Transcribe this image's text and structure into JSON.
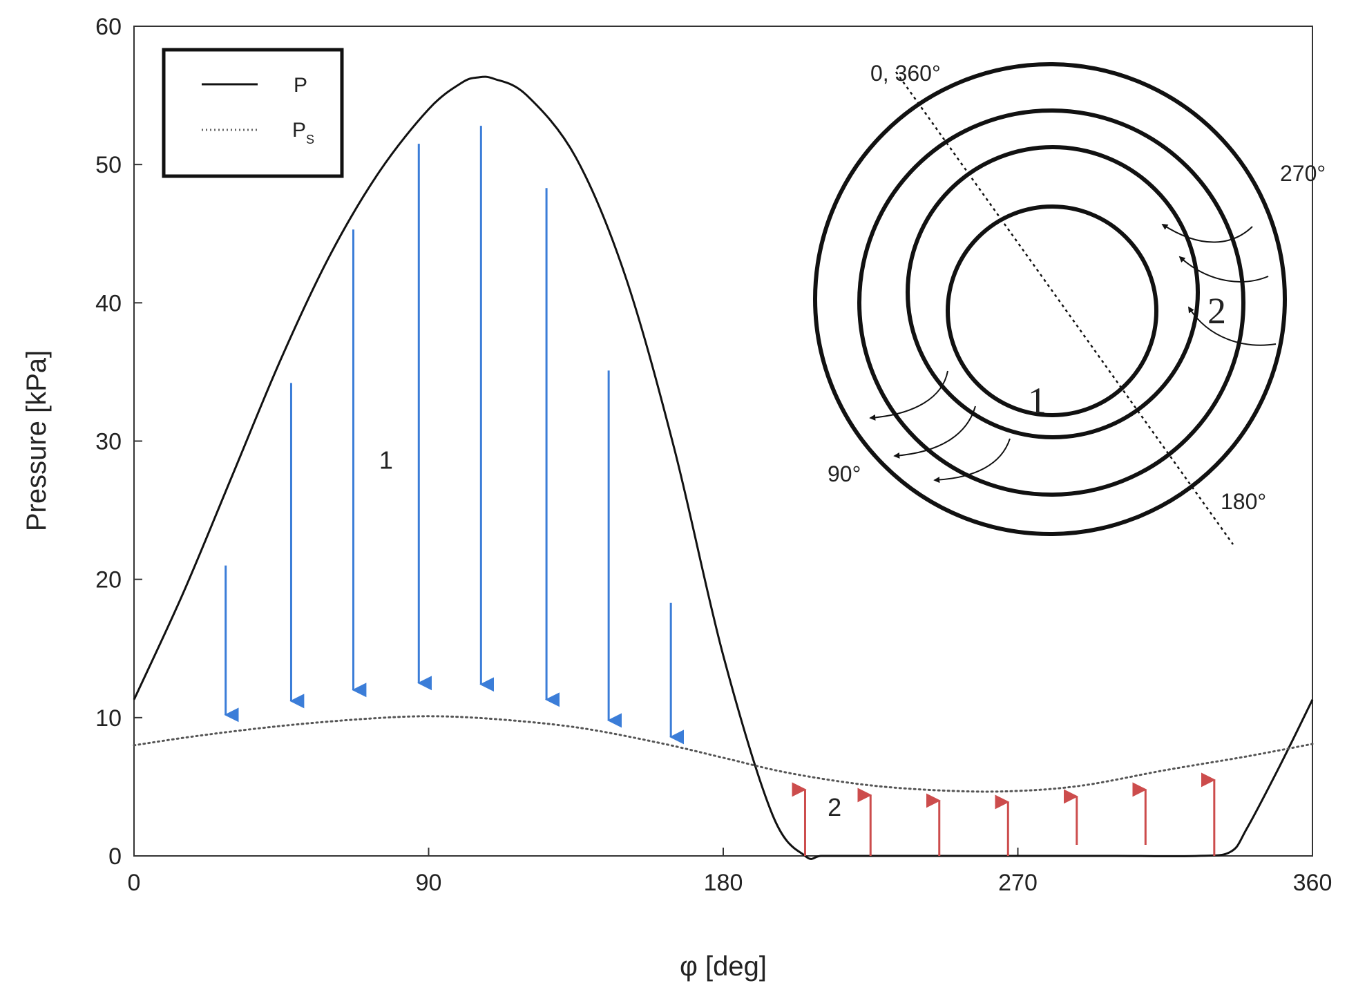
{
  "chart_data": {
    "type": "line",
    "xlabel": "φ [deg]",
    "ylabel": "Pressure [kPa]",
    "xlim": [
      0,
      360
    ],
    "ylim": [
      0,
      60
    ],
    "xticks": [
      "0",
      "90",
      "180",
      "270",
      "360"
    ],
    "yticks": [
      "0",
      "10",
      "20",
      "30",
      "40",
      "50",
      "60"
    ],
    "legend_position": "top-left",
    "grid": false,
    "series": [
      {
        "name": "P",
        "style": "solid",
        "color": "#111111",
        "x": [
          0,
          15,
          30,
          45,
          60,
          75,
          90,
          100,
          105,
          110,
          120,
          135,
          150,
          165,
          180,
          195,
          205,
          210,
          220,
          240,
          270,
          300,
          325,
          335,
          340,
          350,
          360
        ],
        "y": [
          11.3,
          19,
          27.5,
          36,
          43.5,
          49.5,
          54,
          55.9,
          56.3,
          56.2,
          55,
          50.5,
          42,
          29.5,
          14.5,
          3,
          0,
          0,
          0,
          0,
          0,
          0,
          0,
          0.3,
          2,
          6.5,
          11.3
        ]
      },
      {
        "name": "P",
        "subscript": "S",
        "style": "dotted",
        "color": "#555555",
        "x": [
          0,
          20,
          45,
          70,
          90,
          110,
          135,
          160,
          180,
          200,
          225,
          250,
          270,
          290,
          315,
          340,
          360
        ],
        "y": [
          8,
          8.7,
          9.4,
          9.9,
          10.1,
          9.9,
          9.3,
          8.2,
          7.1,
          6,
          5.1,
          4.7,
          4.7,
          5.1,
          6.2,
          7.2,
          8.1
        ]
      }
    ],
    "arrows_down": {
      "color": "#3b7dd8",
      "x": [
        28,
        48,
        67,
        87,
        106,
        126,
        145,
        164
      ],
      "y_from": [
        21,
        34.2,
        45.3,
        51.5,
        52.8,
        48.3,
        35.1,
        18.3
      ],
      "y_to": [
        10.2,
        11.2,
        12,
        12.5,
        12.4,
        11.3,
        9.8,
        8.6
      ]
    },
    "arrows_up": {
      "color": "#cc4c4c",
      "x": [
        205,
        225,
        246,
        267,
        288,
        309,
        330
      ],
      "y_from": [
        0,
        0,
        0,
        0,
        0.8,
        0.8,
        0
      ],
      "y_to": [
        4.8,
        4.4,
        4,
        3.9,
        4.3,
        4.8,
        5.5
      ]
    },
    "annotations": [
      {
        "text": "1",
        "x": 77,
        "y": 28
      },
      {
        "text": "2",
        "x": 214,
        "y": 2.9
      }
    ]
  },
  "inset": {
    "labels": {
      "top": "0, 360°",
      "right": "270°",
      "left": "90°",
      "bottom": "180°",
      "zone1": "1",
      "zone2": "2"
    }
  }
}
